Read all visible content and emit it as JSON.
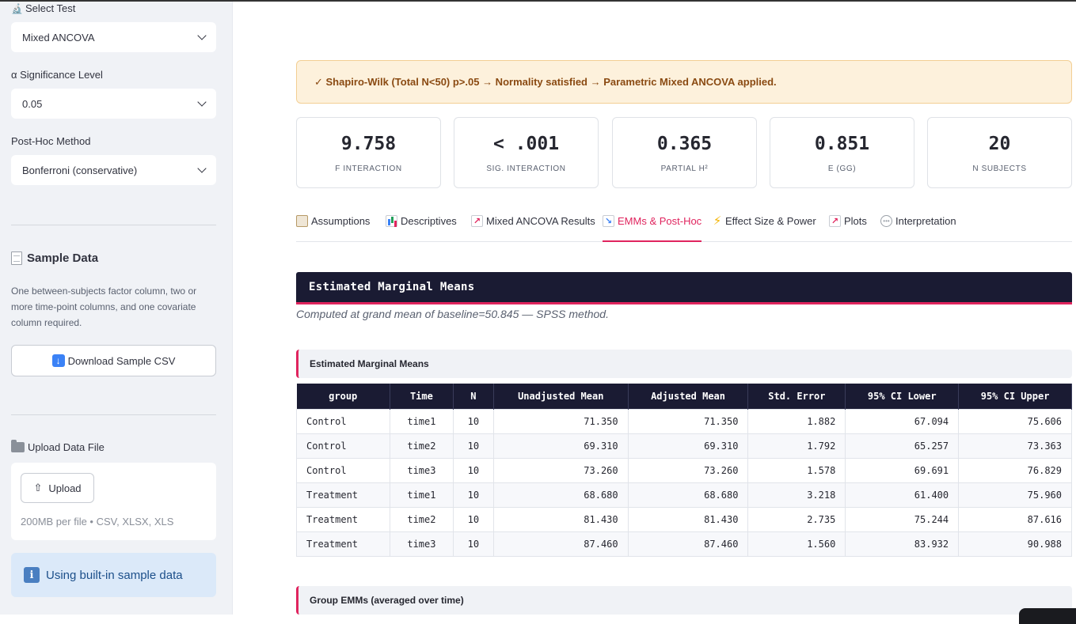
{
  "sidebar": {
    "select_test_label": "Select Test",
    "select_test_value": "Mixed ANCOVA",
    "alpha_label": "α Significance Level",
    "alpha_value": "0.05",
    "posthoc_label": "Post-Hoc Method",
    "posthoc_value": "Bonferroni (conservative)",
    "sample_heading": "Sample Data",
    "sample_desc": "One between-subjects factor column, two or more time-point columns, and one covariate column required.",
    "download_label": "Download Sample CSV",
    "upload_label": "Upload Data File",
    "upload_button": "Upload",
    "upload_hint": "200MB per file • CSV, XLSX, XLS",
    "info_text": "Using built-in sample data"
  },
  "alert": "✓ Shapiro-Wilk (Total N<50) p>.05 → Normality satisfied → Parametric Mixed ANCOVA applied.",
  "metrics": [
    {
      "value": "9.758",
      "label": "F INTERACTION"
    },
    {
      "value": "< .001",
      "label": "SIG. INTERACTION"
    },
    {
      "value": "0.365",
      "label": "PARTIAL Η²"
    },
    {
      "value": "0.851",
      "label": "Ε (GG)"
    },
    {
      "value": "20",
      "label": "N SUBJECTS"
    }
  ],
  "tabs": [
    {
      "label": "Assumptions",
      "icon": "clipboard-icon"
    },
    {
      "label": "Descriptives",
      "icon": "bar-chart-icon"
    },
    {
      "label": "Mixed ANCOVA Results",
      "icon": "chart-increasing-icon"
    },
    {
      "label": "EMMs & Post-Hoc",
      "icon": "chart-decreasing-icon",
      "active": true
    },
    {
      "label": "Effect Size & Power",
      "icon": "lightning-icon"
    },
    {
      "label": "Plots",
      "icon": "chart-increasing-icon"
    },
    {
      "label": "Interpretation",
      "icon": "speech-bubble-icon"
    }
  ],
  "section_title": "Estimated Marginal Means",
  "section_caption": "Computed at grand mean of baseline=50.845 — SPSS method.",
  "emm_subheading": "Estimated Marginal Means",
  "emm_table": {
    "headers": [
      "group",
      "Time",
      "N",
      "Unadjusted Mean",
      "Adjusted Mean",
      "Std. Error",
      "95% CI Lower",
      "95% CI Upper"
    ],
    "rows": [
      [
        "Control",
        "time1",
        "10",
        "71.350",
        "71.350",
        "1.882",
        "67.094",
        "75.606"
      ],
      [
        "Control",
        "time2",
        "10",
        "69.310",
        "69.310",
        "1.792",
        "65.257",
        "73.363"
      ],
      [
        "Control",
        "time3",
        "10",
        "73.260",
        "73.260",
        "1.578",
        "69.691",
        "76.829"
      ],
      [
        "Treatment",
        "time1",
        "10",
        "68.680",
        "68.680",
        "3.218",
        "61.400",
        "75.960"
      ],
      [
        "Treatment",
        "time2",
        "10",
        "81.430",
        "81.430",
        "2.735",
        "75.244",
        "87.616"
      ],
      [
        "Treatment",
        "time3",
        "10",
        "87.460",
        "87.460",
        "1.560",
        "83.932",
        "90.988"
      ]
    ]
  },
  "group_subheading": "Group EMMs (averaged over time)",
  "colors": {
    "accent": "#e0245e",
    "header_dark": "#1a1b33",
    "sidebar_bg": "#f0f2f6"
  }
}
